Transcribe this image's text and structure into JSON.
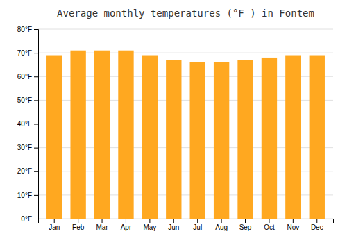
{
  "chart_data": {
    "type": "bar",
    "title": "Average monthly temperatures (°F ) in Fontem",
    "categories": [
      "Jan",
      "Feb",
      "Mar",
      "Apr",
      "May",
      "Jun",
      "Jul",
      "Aug",
      "Sep",
      "Oct",
      "Nov",
      "Dec"
    ],
    "values": [
      69,
      71,
      71,
      71,
      69,
      67,
      66,
      66,
      67,
      68,
      69,
      69
    ],
    "color": "#FFA820",
    "ylim": [
      0,
      80
    ],
    "yticks": [
      {
        "value": 0,
        "label": "0°F"
      },
      {
        "value": 10,
        "label": "10°F"
      },
      {
        "value": 20,
        "label": "20°F"
      },
      {
        "value": 30,
        "label": "30°F"
      },
      {
        "value": 40,
        "label": "40°F"
      },
      {
        "value": 50,
        "label": "50°F"
      },
      {
        "value": 60,
        "label": "60°F"
      },
      {
        "value": 70,
        "label": "70°F"
      },
      {
        "value": 80,
        "label": "80°F"
      }
    ],
    "grid": true
  }
}
